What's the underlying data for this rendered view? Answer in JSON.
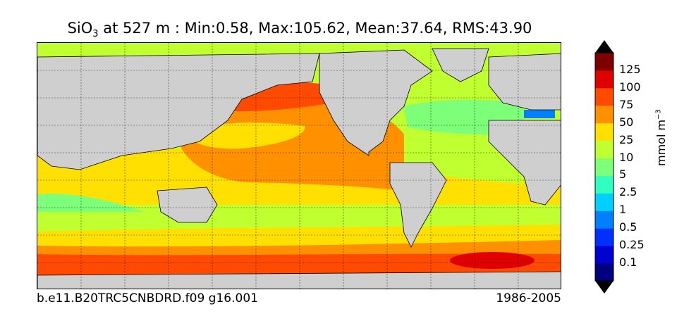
{
  "title": {
    "variable": "SiO",
    "subscript": "3",
    "rest": " at 527 m : Min:0.58, Max:105.62, Mean:37.64, RMS:43.90"
  },
  "footer": {
    "case_name": "b.e11.B20TRC5CNBDRD.f09 g16.001",
    "period": "1986-2005"
  },
  "colorbar": {
    "units": "mmol m",
    "units_exponent": "−3",
    "labels": [
      "125",
      "100",
      "75",
      "50",
      "25",
      "10",
      "5",
      "2.5",
      "1",
      "0.5",
      "0.25",
      "0.1"
    ],
    "colors": [
      "#000080",
      "#0000d0",
      "#0030ff",
      "#0080ff",
      "#00d0ff",
      "#30ffc0",
      "#7dff7a",
      "#c0ff30",
      "#ffe000",
      "#ff9000",
      "#ff4a00",
      "#e00000",
      "#800000"
    ]
  },
  "map": {
    "land_color": "#cfcfcf",
    "grid": true
  }
}
